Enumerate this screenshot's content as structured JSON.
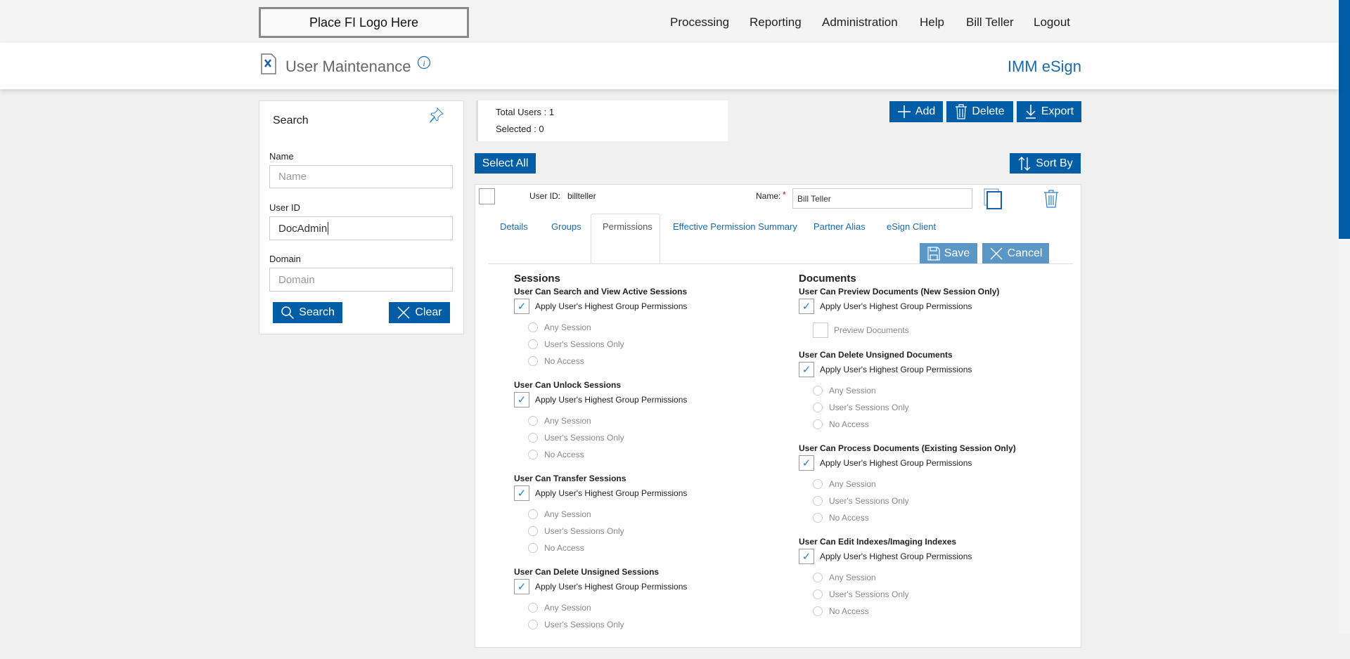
{
  "logo_placeholder": "Place FI Logo Here",
  "nav": [
    "Processing",
    "Reporting",
    "Administration",
    "Help",
    "Bill Teller",
    "Logout"
  ],
  "page_title": "User Maintenance",
  "product_name": "IMM eSign",
  "colors": {
    "primary": "#005da6",
    "primary_light": "#5a96c6"
  },
  "search": {
    "title": "Search",
    "name_label": "Name",
    "name_placeholder": "Name",
    "name_value": "",
    "userid_label": "User ID",
    "userid_value": "DocAdmin",
    "domain_label": "Domain",
    "domain_placeholder": "Domain",
    "domain_value": "",
    "search_button": "Search",
    "clear_button": "Clear"
  },
  "stats": {
    "total_users": "Total Users : 1",
    "selected": "Selected : 0"
  },
  "toolbar": {
    "add": "Add",
    "delete": "Delete",
    "export": "Export",
    "select_all": "Select All",
    "sort_by": "Sort By"
  },
  "user": {
    "userid_label": "User ID:",
    "userid_value": "billteller",
    "name_label": "Name:",
    "required_mark": "*",
    "name_value": "Bill Teller",
    "selected": false
  },
  "tabs": [
    "Details",
    "Groups",
    "Permissions",
    "Effective Permission Summary",
    "Partner Alias",
    "eSign Client"
  ],
  "active_tab": "Permissions",
  "actions": {
    "save": "Save",
    "cancel": "Cancel"
  },
  "permissions": {
    "sessions": {
      "heading": "Sessions",
      "groups": [
        {
          "title": "User Can Search and View Active Sessions",
          "apply": "Apply User's Highest Group Permissions",
          "checked": true,
          "options": [
            "Any Session",
            "User's Sessions Only",
            "No Access"
          ]
        },
        {
          "title": "User Can Unlock Sessions",
          "apply": "Apply User's Highest Group Permissions",
          "checked": true,
          "options": [
            "Any Session",
            "User's Sessions Only",
            "No Access"
          ]
        },
        {
          "title": "User Can Transfer Sessions",
          "apply": "Apply User's Highest Group Permissions",
          "checked": true,
          "options": [
            "Any Session",
            "User's Sessions Only",
            "No Access"
          ]
        },
        {
          "title": "User Can Delete Unsigned Sessions",
          "apply": "Apply User's Highest Group Permissions",
          "checked": true,
          "options": [
            "Any Session",
            "User's Sessions Only"
          ]
        }
      ]
    },
    "documents": {
      "heading": "Documents",
      "preview_group": {
        "title": "User Can Preview Documents (New Session Only)",
        "apply": "Apply User's Highest Group Permissions",
        "checked": true,
        "sub_option": "Preview Documents",
        "sub_checked": false
      },
      "groups": [
        {
          "title": "User Can Delete Unsigned Documents",
          "apply": "Apply User's Highest Group Permissions",
          "checked": true,
          "options": [
            "Any Session",
            "User's Sessions Only",
            "No Access"
          ]
        },
        {
          "title": "User Can Process Documents (Existing Session Only)",
          "apply": "Apply User's Highest Group Permissions",
          "checked": true,
          "options": [
            "Any Session",
            "User's Sessions Only",
            "No Access"
          ]
        },
        {
          "title": "User Can Edit Indexes/Imaging Indexes",
          "apply": "Apply User's Highest Group Permissions",
          "checked": true,
          "options": [
            "Any Session",
            "User's Sessions Only",
            "No Access"
          ]
        }
      ]
    }
  }
}
